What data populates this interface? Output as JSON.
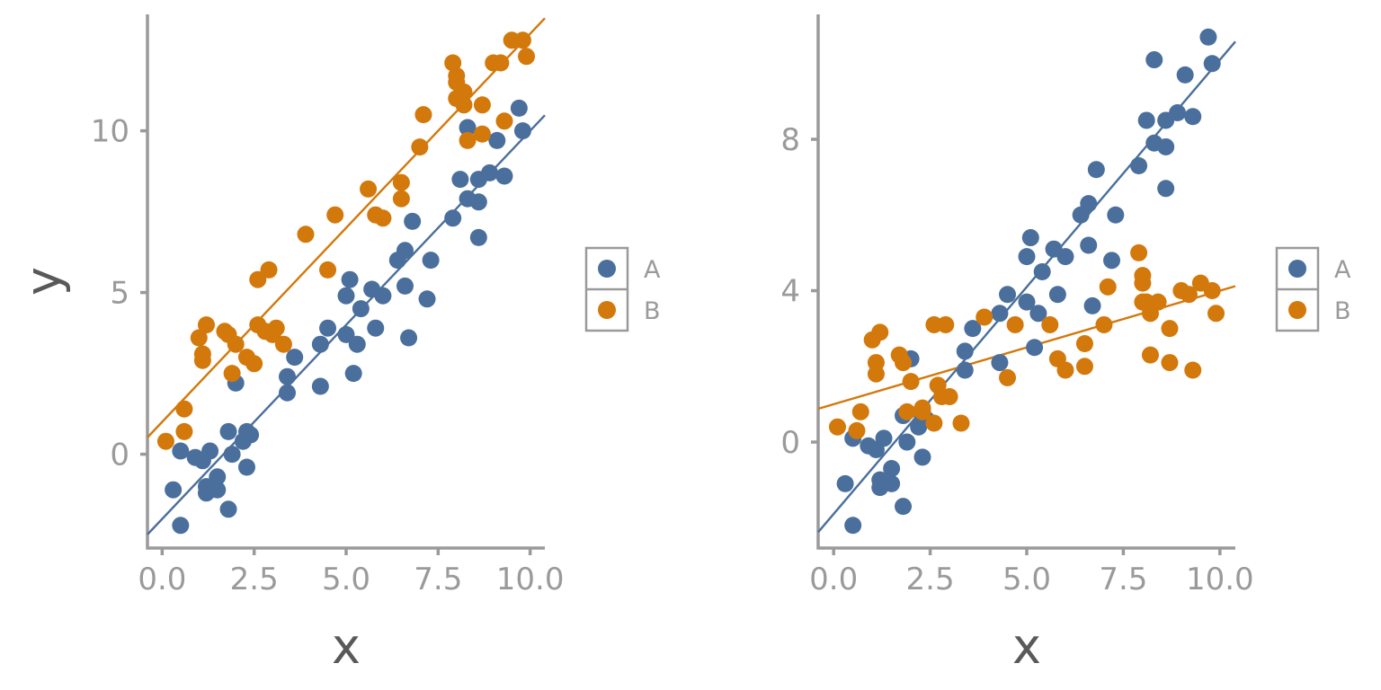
{
  "colors": {
    "A": "#4a6f9c",
    "B": "#d3780b",
    "axis": "#9a9a9a",
    "title": "#595959"
  },
  "chart_data": [
    {
      "type": "scatter",
      "title": "",
      "xlabel": "x",
      "ylabel": "y",
      "xlim": [
        -0.4,
        10.4
      ],
      "ylim": [
        -2.9,
        13.6
      ],
      "xticks": [
        0.0,
        2.5,
        5.0,
        7.5,
        10.0
      ],
      "xtick_labels": [
        "0.0",
        "2.5",
        "5.0",
        "7.5",
        "10.0"
      ],
      "yticks": [
        0,
        5,
        10
      ],
      "ytick_labels": [
        "0",
        "5",
        "10"
      ],
      "legend": {
        "position": "right",
        "entries": [
          "A",
          "B"
        ]
      },
      "series": [
        {
          "name": "A",
          "color": "#4a6f9c",
          "fit": {
            "intercept": -2.0,
            "slope": 1.2
          },
          "points": [
            [
              0.3,
              -1.1
            ],
            [
              0.5,
              0.1
            ],
            [
              0.5,
              -2.2
            ],
            [
              0.9,
              -0.1
            ],
            [
              1.1,
              -0.2
            ],
            [
              1.2,
              -1.0
            ],
            [
              1.2,
              -1.2
            ],
            [
              1.3,
              0.1
            ],
            [
              1.5,
              -1.1
            ],
            [
              1.5,
              -0.7
            ],
            [
              1.8,
              0.7
            ],
            [
              1.8,
              -1.7
            ],
            [
              1.9,
              0.0
            ],
            [
              2.0,
              2.2
            ],
            [
              2.2,
              0.4
            ],
            [
              2.3,
              0.7
            ],
            [
              2.3,
              -0.4
            ],
            [
              2.4,
              0.6
            ],
            [
              3.4,
              2.4
            ],
            [
              3.4,
              1.9
            ],
            [
              3.6,
              3.0
            ],
            [
              4.3,
              3.4
            ],
            [
              4.3,
              2.1
            ],
            [
              4.5,
              3.9
            ],
            [
              5.0,
              4.9
            ],
            [
              5.0,
              3.7
            ],
            [
              5.1,
              5.4
            ],
            [
              5.2,
              2.5
            ],
            [
              5.3,
              3.4
            ],
            [
              5.4,
              4.5
            ],
            [
              5.7,
              5.1
            ],
            [
              5.8,
              3.9
            ],
            [
              6.0,
              4.9
            ],
            [
              6.4,
              6.0
            ],
            [
              6.6,
              5.2
            ],
            [
              6.6,
              6.3
            ],
            [
              6.7,
              3.6
            ],
            [
              6.8,
              7.2
            ],
            [
              7.2,
              4.8
            ],
            [
              7.3,
              6.0
            ],
            [
              7.9,
              7.3
            ],
            [
              8.1,
              8.5
            ],
            [
              8.3,
              10.1
            ],
            [
              8.3,
              7.9
            ],
            [
              8.6,
              8.5
            ],
            [
              8.6,
              6.7
            ],
            [
              8.6,
              7.8
            ],
            [
              8.9,
              8.7
            ],
            [
              9.1,
              9.7
            ],
            [
              9.3,
              8.6
            ],
            [
              9.7,
              10.7
            ],
            [
              9.8,
              10.0
            ]
          ]
        },
        {
          "name": "B",
          "color": "#d3780b",
          "fit": {
            "intercept": 1.0,
            "slope": 1.2
          },
          "points": [
            [
              0.1,
              0.4
            ],
            [
              0.6,
              0.7
            ],
            [
              0.6,
              1.4
            ],
            [
              1.0,
              3.6
            ],
            [
              1.1,
              3.1
            ],
            [
              1.1,
              2.9
            ],
            [
              1.2,
              4.0
            ],
            [
              1.7,
              3.8
            ],
            [
              1.8,
              3.7
            ],
            [
              1.9,
              2.5
            ],
            [
              2.0,
              3.4
            ],
            [
              2.3,
              3.0
            ],
            [
              2.5,
              2.8
            ],
            [
              2.6,
              5.4
            ],
            [
              2.6,
              4.0
            ],
            [
              2.8,
              3.8
            ],
            [
              2.9,
              5.7
            ],
            [
              3.0,
              3.7
            ],
            [
              3.1,
              3.9
            ],
            [
              3.3,
              3.4
            ],
            [
              3.9,
              6.8
            ],
            [
              4.5,
              5.7
            ],
            [
              4.7,
              7.4
            ],
            [
              5.6,
              8.2
            ],
            [
              5.8,
              7.4
            ],
            [
              6.0,
              7.3
            ],
            [
              6.5,
              8.4
            ],
            [
              6.5,
              7.9
            ],
            [
              7.0,
              9.5
            ],
            [
              7.1,
              10.5
            ],
            [
              7.9,
              12.1
            ],
            [
              8.0,
              11.7
            ],
            [
              8.0,
              11.5
            ],
            [
              8.0,
              11.0
            ],
            [
              8.2,
              10.8
            ],
            [
              8.2,
              11.2
            ],
            [
              8.3,
              9.7
            ],
            [
              8.7,
              9.9
            ],
            [
              8.7,
              10.8
            ],
            [
              9.0,
              12.1
            ],
            [
              9.2,
              12.1
            ],
            [
              9.3,
              10.3
            ],
            [
              9.5,
              12.8
            ],
            [
              9.8,
              12.8
            ],
            [
              9.9,
              12.3
            ]
          ]
        }
      ]
    },
    {
      "type": "scatter",
      "title": "",
      "xlabel": "x",
      "ylabel": "",
      "xlim": [
        -0.4,
        10.4
      ],
      "ylim": [
        -2.8,
        11.3
      ],
      "xticks": [
        0.0,
        2.5,
        5.0,
        7.5,
        10.0
      ],
      "xtick_labels": [
        "0.0",
        "2.5",
        "5.0",
        "7.5",
        "10.0"
      ],
      "yticks": [
        0,
        4,
        8
      ],
      "ytick_labels": [
        "0",
        "4",
        "8"
      ],
      "legend": {
        "position": "right",
        "entries": [
          "A",
          "B"
        ]
      },
      "series": [
        {
          "name": "A",
          "color": "#4a6f9c",
          "fit": {
            "intercept": -1.9,
            "slope": 1.2
          },
          "points": [
            [
              0.3,
              -1.1
            ],
            [
              0.5,
              0.1
            ],
            [
              0.5,
              -2.2
            ],
            [
              0.9,
              -0.1
            ],
            [
              1.1,
              -0.2
            ],
            [
              1.2,
              -1.0
            ],
            [
              1.2,
              -1.2
            ],
            [
              1.3,
              0.1
            ],
            [
              1.5,
              -1.1
            ],
            [
              1.5,
              -0.7
            ],
            [
              1.8,
              0.7
            ],
            [
              1.8,
              -1.7
            ],
            [
              1.9,
              0.0
            ],
            [
              2.0,
              2.2
            ],
            [
              2.2,
              0.4
            ],
            [
              2.3,
              0.7
            ],
            [
              2.3,
              -0.4
            ],
            [
              2.4,
              0.6
            ],
            [
              3.4,
              2.4
            ],
            [
              3.4,
              1.9
            ],
            [
              3.6,
              3.0
            ],
            [
              4.3,
              3.4
            ],
            [
              4.3,
              2.1
            ],
            [
              4.5,
              3.9
            ],
            [
              5.0,
              4.9
            ],
            [
              5.0,
              3.7
            ],
            [
              5.1,
              5.4
            ],
            [
              5.2,
              2.5
            ],
            [
              5.3,
              3.4
            ],
            [
              5.4,
              4.5
            ],
            [
              5.7,
              5.1
            ],
            [
              5.8,
              3.9
            ],
            [
              6.0,
              4.9
            ],
            [
              6.4,
              6.0
            ],
            [
              6.6,
              5.2
            ],
            [
              6.6,
              6.3
            ],
            [
              6.7,
              3.6
            ],
            [
              6.8,
              7.2
            ],
            [
              7.2,
              4.8
            ],
            [
              7.3,
              6.0
            ],
            [
              7.9,
              7.3
            ],
            [
              8.1,
              8.5
            ],
            [
              8.3,
              10.1
            ],
            [
              8.3,
              7.9
            ],
            [
              8.6,
              8.5
            ],
            [
              8.6,
              6.7
            ],
            [
              8.6,
              7.8
            ],
            [
              8.9,
              8.7
            ],
            [
              9.1,
              9.7
            ],
            [
              9.3,
              8.6
            ],
            [
              9.7,
              10.7
            ],
            [
              9.8,
              10.0
            ]
          ]
        },
        {
          "name": "B",
          "color": "#d3780b",
          "fit": {
            "intercept": 1.0,
            "slope": 0.3
          },
          "points": [
            [
              0.1,
              0.4
            ],
            [
              0.6,
              0.3
            ],
            [
              0.7,
              0.8
            ],
            [
              1.0,
              2.7
            ],
            [
              1.1,
              2.1
            ],
            [
              1.1,
              1.8
            ],
            [
              1.2,
              2.9
            ],
            [
              1.7,
              2.3
            ],
            [
              1.8,
              2.1
            ],
            [
              1.9,
              0.8
            ],
            [
              2.0,
              1.6
            ],
            [
              2.3,
              0.8
            ],
            [
              2.3,
              0.9
            ],
            [
              2.6,
              3.1
            ],
            [
              2.6,
              0.5
            ],
            [
              2.7,
              1.5
            ],
            [
              2.8,
              1.2
            ],
            [
              2.9,
              3.1
            ],
            [
              3.0,
              1.2
            ],
            [
              3.3,
              0.5
            ],
            [
              3.9,
              3.3
            ],
            [
              4.5,
              1.7
            ],
            [
              4.7,
              3.1
            ],
            [
              5.6,
              3.1
            ],
            [
              5.8,
              2.2
            ],
            [
              6.0,
              1.9
            ],
            [
              6.5,
              2.6
            ],
            [
              6.5,
              2.0
            ],
            [
              7.0,
              3.1
            ],
            [
              7.1,
              4.1
            ],
            [
              7.9,
              5.0
            ],
            [
              8.0,
              4.2
            ],
            [
              8.0,
              3.7
            ],
            [
              8.0,
              4.4
            ],
            [
              8.1,
              3.7
            ],
            [
              8.2,
              3.4
            ],
            [
              8.2,
              2.3
            ],
            [
              8.4,
              3.7
            ],
            [
              8.7,
              3.0
            ],
            [
              8.7,
              2.1
            ],
            [
              9.0,
              4.0
            ],
            [
              9.2,
              3.9
            ],
            [
              9.3,
              1.9
            ],
            [
              9.5,
              4.2
            ],
            [
              9.8,
              4.0
            ],
            [
              9.9,
              3.4
            ]
          ]
        }
      ]
    }
  ]
}
